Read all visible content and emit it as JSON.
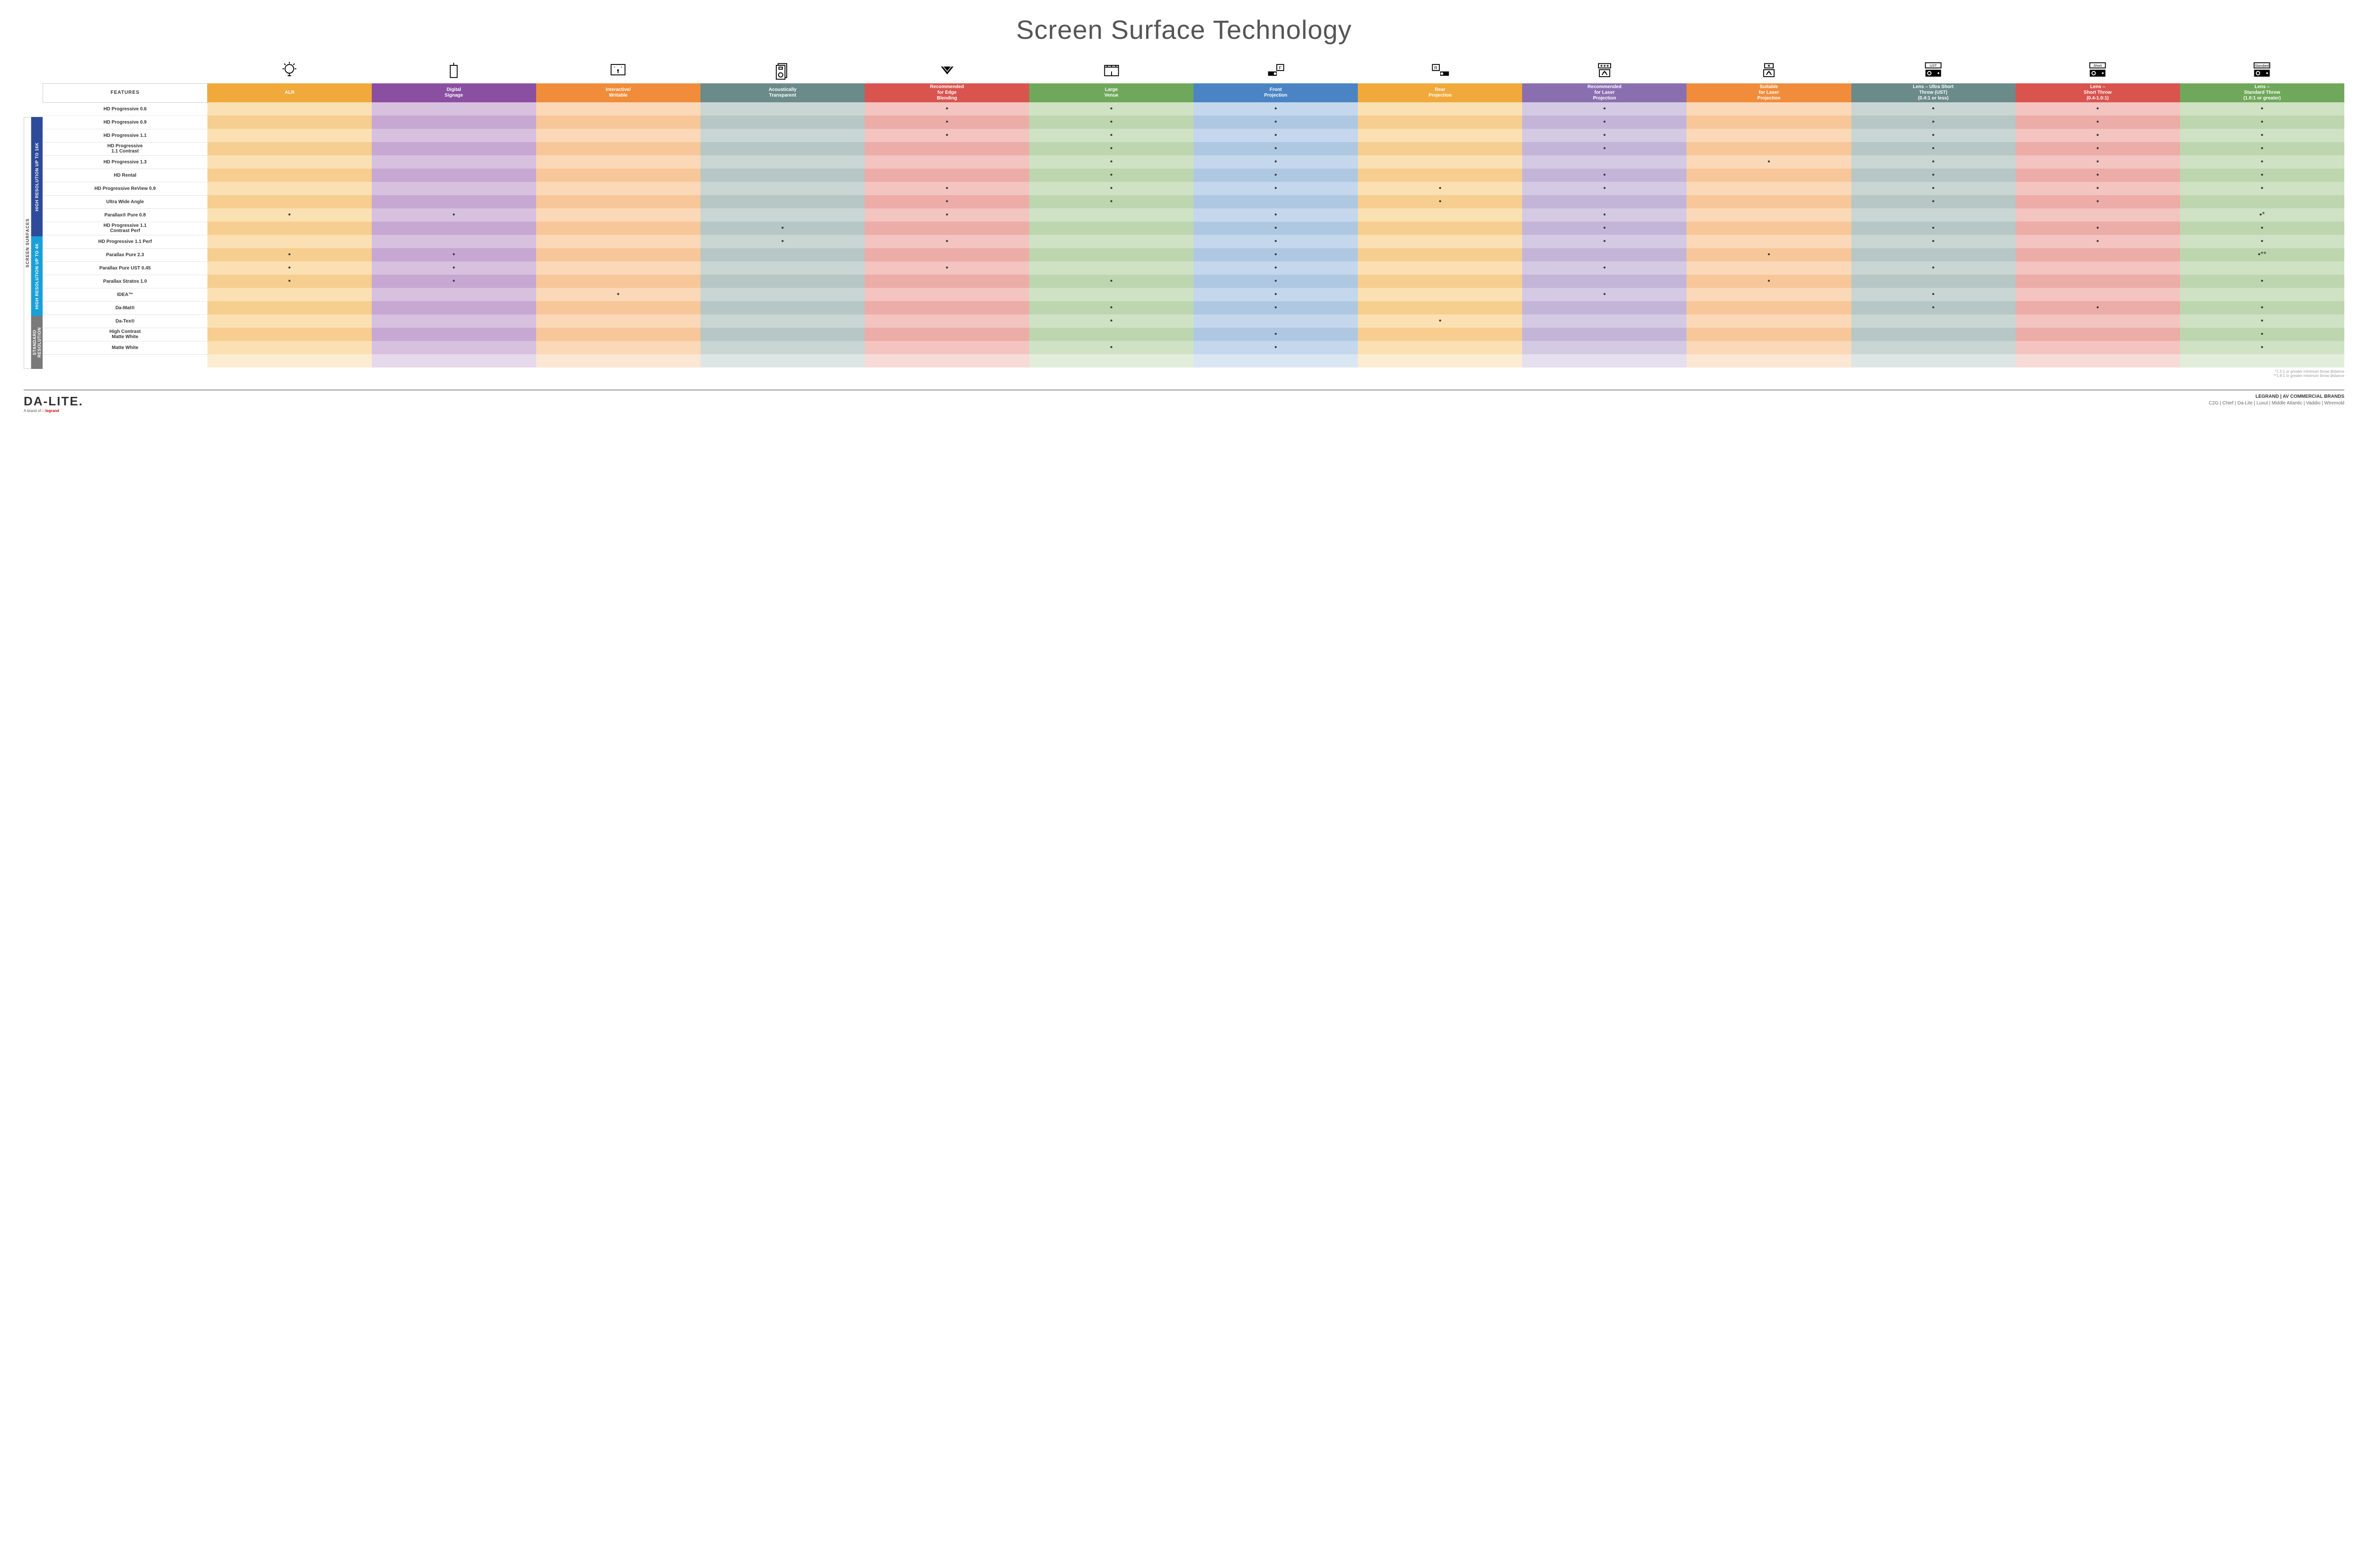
{
  "title": "Screen Surface Technology",
  "colors": {
    "group_16k": "#2e4b9b",
    "group_4k": "#1aa0d8",
    "group_std": "#7a7a7a",
    "side_text": "#444444"
  },
  "columns": [
    {
      "key": "alr",
      "label": "ALR",
      "color": "#f0a93a",
      "light": "#fbe0b3",
      "alt": "#f6ce8f"
    },
    {
      "key": "signage",
      "label": "Digital\nSignage",
      "color": "#8a4fa0",
      "light": "#d7c1df",
      "alt": "#c6a8d2"
    },
    {
      "key": "interactive",
      "label": "Interactive/\nWritable",
      "color": "#f08c3a",
      "light": "#fbd8b8",
      "alt": "#f7c79a"
    },
    {
      "key": "acoustic",
      "label": "Acoustically\nTransparent",
      "color": "#6b8a8a",
      "light": "#c9d6d4",
      "alt": "#b6c7c5"
    },
    {
      "key": "edge",
      "label": "Recommended\nfor Edge\nBlending",
      "color": "#d9544f",
      "light": "#f3c4c0",
      "alt": "#ecaca8"
    },
    {
      "key": "venue",
      "label": "Large\nVenue",
      "color": "#6fa85a",
      "light": "#cfe2c4",
      "alt": "#bdd6b0"
    },
    {
      "key": "front",
      "label": "Front\nProjection",
      "color": "#4a84c4",
      "light": "#c4d7ec",
      "alt": "#afc8e2"
    },
    {
      "key": "rear",
      "label": "Rear\nProjection",
      "color": "#f0a93a",
      "light": "#fbe0b3",
      "alt": "#f6ce8f"
    },
    {
      "key": "rec_laser",
      "label": "Recommended\nfor Laser\nProjection",
      "color": "#8a6fb0",
      "light": "#d4cae3",
      "alt": "#c3b5d8"
    },
    {
      "key": "suit_laser",
      "label": "Suitable\nfor Laser\nProjection",
      "color": "#f08c3a",
      "light": "#fbd8b8",
      "alt": "#f7c79a"
    },
    {
      "key": "ust",
      "label": "Lens – Ultra Short\nThrow (UST)\n(0.4:1 or less)",
      "color": "#6b8a8a",
      "light": "#c9d6d4",
      "alt": "#b6c7c5"
    },
    {
      "key": "short",
      "label": "Lens –\nShort Throw\n(0.4-1.0:1)",
      "color": "#d9544f",
      "light": "#f3c4c0",
      "alt": "#ecaca8"
    },
    {
      "key": "standard",
      "label": "Lens –\nStandard Throw\n(1.0:1 or greater)",
      "color": "#6fa85a",
      "light": "#cfe2c4",
      "alt": "#bdd6b0"
    }
  ],
  "groups": [
    {
      "key": "16k",
      "label": "HIGH RESOLUTION UP TO 16K",
      "color": "#2e4b9b",
      "rows": 9
    },
    {
      "key": "4k",
      "label": "HIGH RESOLUTION UP TO 4K",
      "color": "#1aa0d8",
      "rows": 6
    },
    {
      "key": "std",
      "label": "STANDARD\nRESOLUTION",
      "color": "#7a7a7a",
      "rows": 4
    }
  ],
  "side_outer_label": "SCREEN SURFACES",
  "features_header": "FEATURES",
  "rows": [
    {
      "group": "16k",
      "label": "HD Progressive 0.6",
      "cells": {
        "edge": "•",
        "venue": "•",
        "front": "•",
        "rec_laser": "•",
        "ust": "•",
        "short": "•",
        "standard": "•"
      }
    },
    {
      "group": "16k",
      "label": "HD Progressive 0.9",
      "cells": {
        "edge": "•",
        "venue": "•",
        "front": "•",
        "rec_laser": "•",
        "ust": "•",
        "short": "•",
        "standard": "•"
      }
    },
    {
      "group": "16k",
      "label": "HD Progressive 1.1",
      "cells": {
        "edge": "•",
        "venue": "•",
        "front": "•",
        "rec_laser": "•",
        "ust": "•",
        "short": "•",
        "standard": "•"
      }
    },
    {
      "group": "16k",
      "label": "HD Progressive\n1.1 Contrast",
      "cells": {
        "venue": "•",
        "front": "•",
        "rec_laser": "•",
        "ust": "•",
        "short": "•",
        "standard": "•"
      }
    },
    {
      "group": "16k",
      "label": "HD Progressive 1.3",
      "cells": {
        "venue": "•",
        "front": "•",
        "suit_laser": "•",
        "ust": "•",
        "short": "•",
        "standard": "•"
      }
    },
    {
      "group": "16k",
      "label": "HD Rental",
      "cells": {
        "venue": "•",
        "front": "•",
        "rec_laser": "•",
        "ust": "•",
        "short": "•",
        "standard": "•"
      }
    },
    {
      "group": "16k",
      "label": "HD Progressive ReView 0.9",
      "cells": {
        "edge": "•",
        "venue": "•",
        "front": "•",
        "rear": "•",
        "rec_laser": "•",
        "ust": "•",
        "short": "•",
        "standard": "•"
      }
    },
    {
      "group": "16k",
      "label": "Ultra Wide Angle",
      "cells": {
        "edge": "•",
        "venue": "•",
        "rear": "•",
        "ust": "•",
        "short": "•"
      }
    },
    {
      "group": "16k",
      "label": "Parallax® Pure 0.8",
      "cells": {
        "alr": "•",
        "signage": "•",
        "edge": "•",
        "front": "•",
        "rec_laser": "•",
        "standard": "•*"
      }
    },
    {
      "group": "4k",
      "label": "HD Progressive 1.1\nContrast Perf",
      "cells": {
        "acoustic": "•",
        "front": "•",
        "rec_laser": "•",
        "ust": "•",
        "short": "•",
        "standard": "•"
      }
    },
    {
      "group": "4k",
      "label": "HD Progressive 1.1 Perf",
      "cells": {
        "acoustic": "•",
        "edge": "•",
        "front": "•",
        "rec_laser": "•",
        "ust": "•",
        "short": "•",
        "standard": "•"
      }
    },
    {
      "group": "4k",
      "label": "Parallax Pure 2.3",
      "cells": {
        "alr": "•",
        "signage": "•",
        "front": "•",
        "suit_laser": "•",
        "standard": "•**"
      }
    },
    {
      "group": "4k",
      "label": "Parallax Pure UST 0.45",
      "cells": {
        "alr": "•",
        "signage": "•",
        "edge": "•",
        "front": "•",
        "rec_laser": "•",
        "ust": "•"
      }
    },
    {
      "group": "4k",
      "label": "Parallax Stratos 1.0",
      "cells": {
        "alr": "•",
        "signage": "•",
        "venue": "•",
        "front": "•",
        "suit_laser": "•",
        "standard": "•"
      }
    },
    {
      "group": "4k",
      "label": "IDEA™",
      "cells": {
        "interactive": "•",
        "front": "•",
        "rec_laser": "•",
        "ust": "•"
      }
    },
    {
      "group": "std",
      "label": "Da-Mat®",
      "cells": {
        "venue": "•",
        "front": "•",
        "ust": "•",
        "short": "•",
        "standard": "•"
      }
    },
    {
      "group": "std",
      "label": "Da-Tex®",
      "cells": {
        "venue": "•",
        "rear": "•",
        "standard": "•"
      }
    },
    {
      "group": "std",
      "label": "High Contrast\nMatte White",
      "cells": {
        "front": "•",
        "standard": "•"
      }
    },
    {
      "group": "std",
      "label": "Matte White",
      "cells": {
        "venue": "•",
        "front": "•",
        "standard": "•"
      }
    }
  ],
  "icons": [
    "bulb",
    "signage",
    "touch",
    "speaker",
    "blend",
    "venue",
    "front-proj",
    "rear-proj",
    "rec-laser",
    "suit-laser",
    "ust",
    "short",
    "standard"
  ],
  "footnotes": [
    "*1.5:1 or greater minimum throw distance",
    "**1.8:1 or greater minimum throw distance"
  ],
  "footer": {
    "logo": "DA-LITE.",
    "logo_sub_prefix": "A brand of ",
    "logo_sub_brand": "legrand",
    "right_title": "LEGRAND | AV COMMERCIAL BRANDS",
    "brands": "C2G  |  Chief  |  Da-Lite  |  Luxul  |  Middle Atlantic  |  Vaddio  |  Wiremold"
  }
}
